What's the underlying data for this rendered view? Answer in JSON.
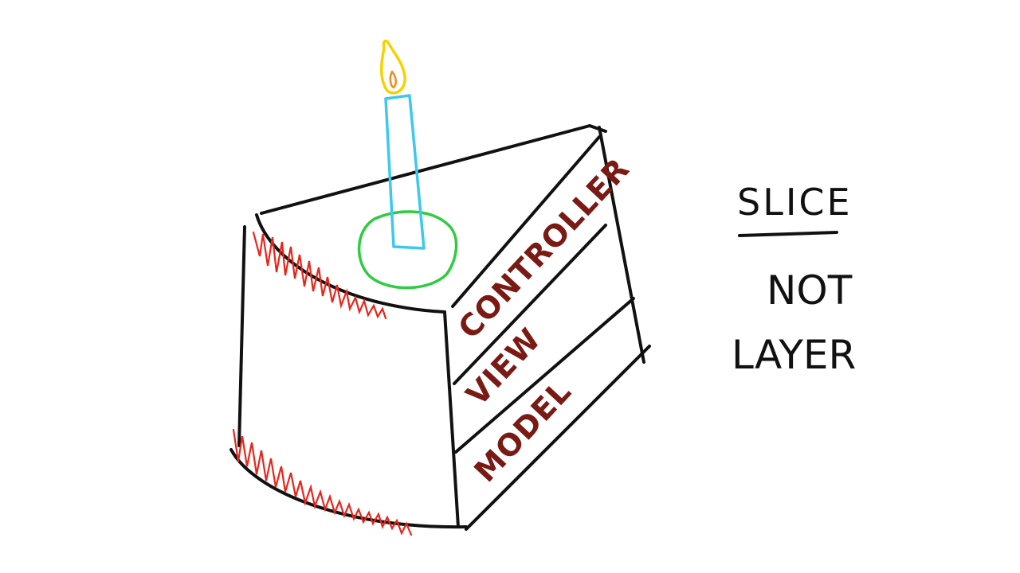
{
  "layers": {
    "top": "CONTROLLER",
    "middle": "VIEW",
    "bottom": "MODEL"
  },
  "caption": {
    "line1": "SLICE",
    "line2": "NOT",
    "line3": "LAYER"
  },
  "colors": {
    "outline": "#111111",
    "frosting": "#e8251b",
    "layer_text": "#7a1a14",
    "candle": "#3cc8f0",
    "flame_outer": "#f5d200",
    "flame_inner": "#f08a1e",
    "wax_pool": "#2ecc40"
  }
}
